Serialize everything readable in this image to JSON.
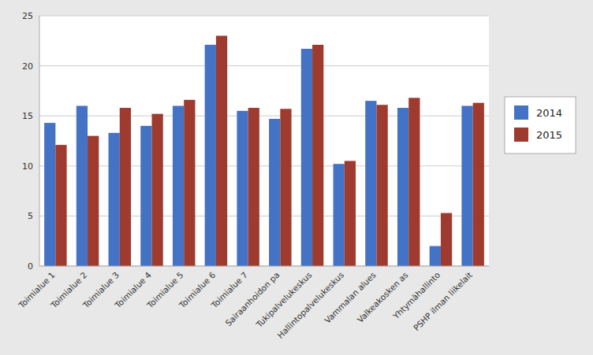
{
  "chart_data": {
    "type": "bar",
    "categories": [
      "Toimialue 1",
      "Toimialue 2",
      "Toimialue 3",
      "Toimialue 4",
      "Toimialue 5",
      "Toimialue 6",
      "Toimialue 7",
      "Sairaanhoidon pa",
      "Tukipalvelukeskus",
      "Hallintopalvelukeskus",
      "Vammalan alues",
      "Valkeakosken as",
      "Yhtymähallinto",
      "PSHP ilman liikelait"
    ],
    "series": [
      {
        "name": "2014",
        "color": "#4472C4",
        "values": [
          14.3,
          16.0,
          13.3,
          14.0,
          16.0,
          22.1,
          15.5,
          14.7,
          21.7,
          10.2,
          16.5,
          15.8,
          2.0,
          16.0
        ]
      },
      {
        "name": "2015",
        "color": "#9E3B2E",
        "values": [
          12.1,
          13.0,
          15.8,
          15.2,
          16.6,
          23.0,
          15.8,
          15.7,
          22.1,
          10.5,
          16.1,
          16.8,
          5.3,
          16.3
        ]
      }
    ],
    "ylim": [
      0,
      25
    ],
    "yticks": [
      0,
      5,
      10,
      15,
      20,
      25
    ],
    "grid": true,
    "legend": "right"
  }
}
